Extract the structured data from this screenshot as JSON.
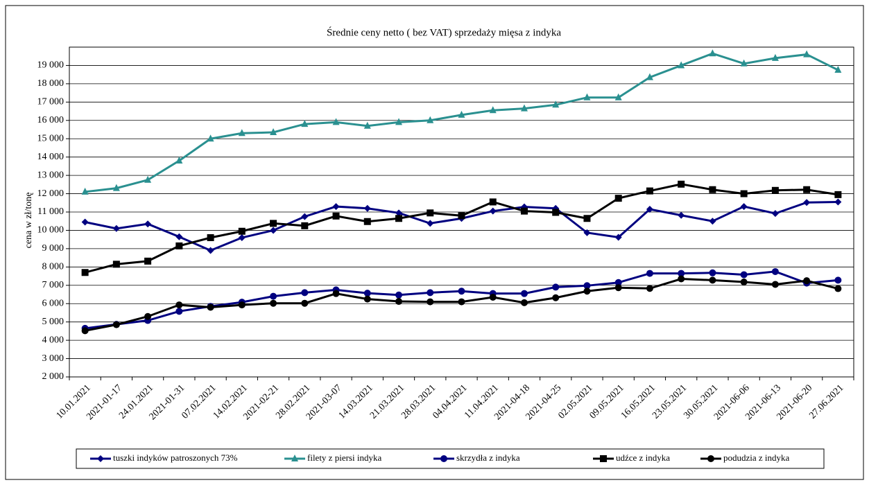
{
  "chart_data": {
    "type": "line",
    "title": "Średnie ceny netto ( bez VAT) sprzedaży mięsa z indyka",
    "y_label": "cena w zł/tonę",
    "categories": [
      "10.01.2021",
      "2021-01-17",
      "24.01.2021",
      "2021-01-31",
      "07.02.2021",
      "14.02.2021",
      "2021-02-21",
      "28.02.2021",
      "2021-03-07",
      "14.03.2021",
      "21.03.2021",
      "28.03.2021",
      "04.04.2021",
      "11.04.2021",
      "2021-04-18",
      "2021-04-25",
      "02.05.2021",
      "09.05.2021",
      "16.05.2021",
      "23.05.2021",
      "30.05.2021",
      "2021-06-06",
      "2021-06-13",
      "2021-06-20",
      "27.06.2021"
    ],
    "series": [
      {
        "name": "tuszki indyków patroszonych 73%",
        "color": "#000080",
        "marker": "diamond",
        "values": [
          10450,
          10100,
          10350,
          9650,
          8900,
          9600,
          10000,
          10750,
          11300,
          11200,
          10950,
          10380,
          10650,
          11050,
          11280,
          11200,
          9870,
          9620,
          11150,
          10820,
          10500,
          11300,
          10920,
          11520,
          11550
        ]
      },
      {
        "name": "filety z piersi indyka",
        "color": "#2a9090",
        "marker": "triangle",
        "values": [
          12100,
          12300,
          12750,
          13800,
          15000,
          15300,
          15350,
          15800,
          15900,
          15700,
          15900,
          16000,
          16300,
          16550,
          16650,
          16850,
          17250,
          17250,
          18350,
          19000,
          19650,
          19100,
          19400,
          19600,
          18750
        ]
      },
      {
        "name": "skrzydła z indyka",
        "color": "#000080",
        "marker": "circle",
        "values": [
          4650,
          4870,
          5080,
          5580,
          5850,
          6080,
          6400,
          6600,
          6750,
          6570,
          6470,
          6600,
          6680,
          6550,
          6550,
          6900,
          6980,
          7150,
          7650,
          7650,
          7680,
          7580,
          7750,
          7120,
          7280
        ]
      },
      {
        "name": "udźce z indyka",
        "color": "#000000",
        "marker": "square",
        "values": [
          7700,
          8150,
          8320,
          9150,
          9600,
          9950,
          10380,
          10250,
          10780,
          10480,
          10650,
          10950,
          10800,
          11550,
          11050,
          10980,
          10650,
          11750,
          12150,
          12520,
          12220,
          12000,
          12180,
          12220,
          11950
        ]
      },
      {
        "name": "podudzia z indyka",
        "color": "#000000",
        "marker": "circle",
        "values": [
          4520,
          4850,
          5300,
          5930,
          5800,
          5930,
          6020,
          6020,
          6550,
          6250,
          6120,
          6100,
          6100,
          6350,
          6050,
          6320,
          6680,
          6870,
          6830,
          7350,
          7280,
          7180,
          7050,
          7250,
          6820
        ]
      }
    ],
    "ylim": [
      2000,
      20000
    ],
    "yticks": [
      {
        "value": 2000,
        "label": "2 000"
      },
      {
        "value": 3000,
        "label": "3 000"
      },
      {
        "value": 4000,
        "label": "4 000"
      },
      {
        "value": 5000,
        "label": "5 000"
      },
      {
        "value": 6000,
        "label": "6 000"
      },
      {
        "value": 7000,
        "label": "7 000"
      },
      {
        "value": 8000,
        "label": "8 000"
      },
      {
        "value": 9000,
        "label": "9 000"
      },
      {
        "value": 10000,
        "label": "10 000"
      },
      {
        "value": 11000,
        "label": "11 000"
      },
      {
        "value": 12000,
        "label": "12 000"
      },
      {
        "value": 13000,
        "label": "13 000"
      },
      {
        "value": 14000,
        "label": "14 000"
      },
      {
        "value": 15000,
        "label": "15 000"
      },
      {
        "value": 16000,
        "label": "16 000"
      },
      {
        "value": 17000,
        "label": "17 000"
      },
      {
        "value": 18000,
        "label": "18 000"
      },
      {
        "value": 19000,
        "label": "19 000"
      }
    ],
    "grid": true,
    "legend": "bottom"
  }
}
